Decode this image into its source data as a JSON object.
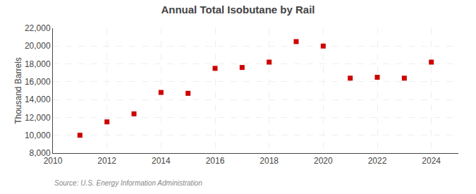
{
  "chart_data": {
    "type": "scatter",
    "title": "Annual Total Isobutane by Rail",
    "ylabel": "Thousand Barrels",
    "annotations": [
      "Source: U.S. Energy Information Administration"
    ],
    "x": [
      2011,
      2012,
      2013,
      2014,
      2015,
      2016,
      2017,
      2018,
      2019,
      2020,
      2021,
      2022,
      2023,
      2024
    ],
    "values": [
      10000,
      11500,
      12400,
      14800,
      14700,
      17500,
      17600,
      18200,
      20500,
      20000,
      16400,
      16500,
      16400,
      18200
    ],
    "color": "#cc0000",
    "marker": "square",
    "xlim": [
      2010,
      2025
    ],
    "ylim": [
      8000,
      22000
    ],
    "xticks": [
      2010,
      2012,
      2014,
      2016,
      2018,
      2020,
      2022,
      2024
    ],
    "yticks": [
      {
        "value": 8000,
        "label": "8,000"
      },
      {
        "value": 10000,
        "label": "10,000"
      },
      {
        "value": 12000,
        "label": "12,000"
      },
      {
        "value": 14000,
        "label": "14,000"
      },
      {
        "value": 16000,
        "label": "16,000"
      },
      {
        "value": 18000,
        "label": "18,000"
      },
      {
        "value": 20000,
        "label": "20,000"
      },
      {
        "value": 22000,
        "label": "22,000"
      }
    ],
    "grid": true
  }
}
